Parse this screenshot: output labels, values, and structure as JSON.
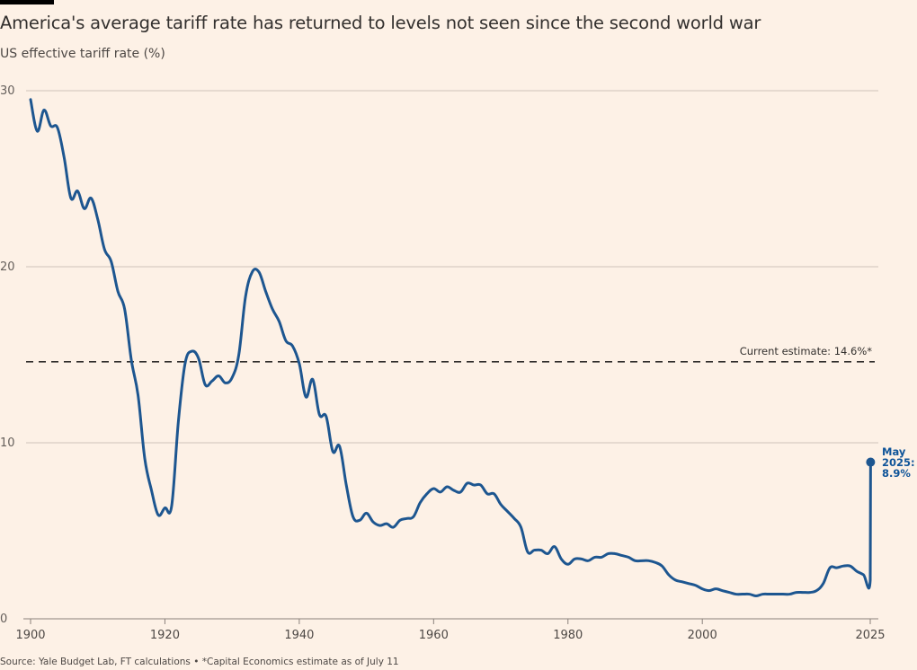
{
  "header": {
    "title": "America's average tariff rate has returned to levels not seen since the second world war",
    "subtitle": "US effective tariff rate (%)"
  },
  "footer": {
    "source": "Source: Yale Budget Lab, FT calculations • *Capital Economics estimate as of July 11"
  },
  "colors": {
    "background": "#fdf1e6",
    "line": "#1d5690",
    "gridline": "#cfc4b9",
    "reference_line": "#33302e",
    "end_label": "#0f5499"
  },
  "chart_data": {
    "type": "line",
    "title": "America's average tariff rate has returned to levels not seen since the second world war",
    "ylabel": "US effective tariff rate (%)",
    "xlabel": "",
    "xlim": [
      1900,
      2025
    ],
    "ylim": [
      0,
      30
    ],
    "grid": true,
    "yticks": [
      0,
      10,
      20,
      30
    ],
    "ytick_labels": [
      "0",
      "10",
      "20",
      "30"
    ],
    "xticks": [
      1900,
      1920,
      1940,
      1960,
      1980,
      2000,
      2025
    ],
    "xtick_labels": [
      "1900",
      "1920",
      "1940",
      "1960",
      "1980",
      "2000",
      "2025"
    ],
    "series": [
      {
        "name": "US effective tariff rate",
        "x": [
          1900,
          1901,
          1902,
          1903,
          1904,
          1905,
          1906,
          1907,
          1908,
          1909,
          1910,
          1911,
          1912,
          1913,
          1914,
          1915,
          1916,
          1917,
          1918,
          1919,
          1920,
          1921,
          1922,
          1923,
          1924,
          1925,
          1926,
          1927,
          1928,
          1929,
          1930,
          1931,
          1932,
          1933,
          1934,
          1935,
          1936,
          1937,
          1938,
          1939,
          1940,
          1941,
          1942,
          1943,
          1944,
          1945,
          1946,
          1947,
          1948,
          1949,
          1950,
          1951,
          1952,
          1953,
          1954,
          1955,
          1956,
          1957,
          1958,
          1959,
          1960,
          1961,
          1962,
          1963,
          1964,
          1965,
          1966,
          1967,
          1968,
          1969,
          1970,
          1971,
          1972,
          1973,
          1974,
          1975,
          1976,
          1977,
          1978,
          1979,
          1980,
          1981,
          1982,
          1983,
          1984,
          1985,
          1986,
          1987,
          1988,
          1989,
          1990,
          1991,
          1992,
          1993,
          1994,
          1995,
          1996,
          1997,
          1998,
          1999,
          2000,
          2001,
          2002,
          2003,
          2004,
          2005,
          2006,
          2007,
          2008,
          2009,
          2010,
          2011,
          2012,
          2013,
          2014,
          2015,
          2016,
          2017,
          2018,
          2019,
          2020,
          2021,
          2022,
          2023,
          2024,
          2025.0,
          2025.05
        ],
        "values": [
          29.5,
          27.7,
          28.9,
          28.0,
          27.9,
          26.2,
          23.9,
          24.3,
          23.3,
          23.9,
          22.7,
          21.0,
          20.3,
          18.6,
          17.6,
          14.7,
          12.7,
          9.1,
          7.3,
          5.9,
          6.3,
          6.4,
          11.2,
          14.5,
          15.2,
          14.8,
          13.3,
          13.5,
          13.8,
          13.4,
          13.7,
          15.0,
          18.3,
          19.7,
          19.7,
          18.6,
          17.6,
          16.9,
          15.8,
          15.5,
          14.5,
          12.6,
          13.6,
          11.6,
          11.5,
          9.5,
          9.8,
          7.6,
          5.8,
          5.6,
          6.0,
          5.5,
          5.3,
          5.4,
          5.2,
          5.6,
          5.7,
          5.8,
          6.6,
          7.1,
          7.4,
          7.2,
          7.5,
          7.3,
          7.2,
          7.7,
          7.6,
          7.6,
          7.1,
          7.1,
          6.5,
          6.1,
          5.7,
          5.2,
          3.8,
          3.9,
          3.9,
          3.7,
          4.1,
          3.4,
          3.1,
          3.4,
          3.4,
          3.3,
          3.5,
          3.5,
          3.7,
          3.7,
          3.6,
          3.5,
          3.3,
          3.3,
          3.3,
          3.2,
          3.0,
          2.5,
          2.2,
          2.1,
          2.0,
          1.9,
          1.7,
          1.6,
          1.7,
          1.6,
          1.5,
          1.4,
          1.4,
          1.4,
          1.3,
          1.4,
          1.4,
          1.4,
          1.4,
          1.4,
          1.5,
          1.5,
          1.5,
          1.6,
          2.0,
          2.9,
          2.9,
          3.0,
          3.0,
          2.7,
          2.5,
          2.2,
          8.9
        ]
      }
    ],
    "reference_line": {
      "value": 14.6,
      "label": "Current estimate: 14.6%*",
      "style": "dashed"
    },
    "end_point": {
      "x": 2025.05,
      "value": 8.9,
      "label_lines": [
        "May",
        "2025:",
        "8.9%"
      ]
    }
  }
}
